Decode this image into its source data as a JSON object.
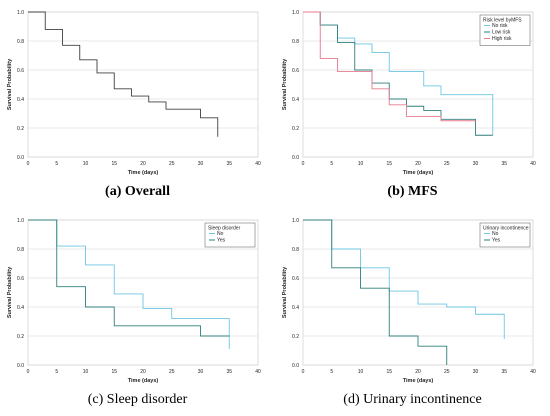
{
  "chart_data": [
    {
      "type": "line",
      "caption_letter": "(a)",
      "caption_text": "Overall",
      "caption_bold": true,
      "xlabel": "Time (days)",
      "ylabel": "Survival Probability",
      "xlim": [
        0,
        40
      ],
      "ylim": [
        0,
        1
      ],
      "xticks": [
        0,
        5,
        10,
        15,
        20,
        25,
        30,
        35,
        40
      ],
      "yticks": [
        0.0,
        0.2,
        0.4,
        0.6,
        0.8,
        1.0
      ],
      "grid": true,
      "legend_title": "",
      "series": [
        {
          "name": "",
          "color": "#404040",
          "points": [
            [
              0,
              1.0
            ],
            [
              3,
              1.0
            ],
            [
              3,
              0.88
            ],
            [
              6,
              0.88
            ],
            [
              6,
              0.77
            ],
            [
              9,
              0.77
            ],
            [
              9,
              0.67
            ],
            [
              12,
              0.67
            ],
            [
              12,
              0.58
            ],
            [
              15,
              0.58
            ],
            [
              15,
              0.47
            ],
            [
              18,
              0.47
            ],
            [
              18,
              0.42
            ],
            [
              21,
              0.42
            ],
            [
              21,
              0.38
            ],
            [
              24,
              0.38
            ],
            [
              24,
              0.33
            ],
            [
              30,
              0.33
            ],
            [
              30,
              0.27
            ],
            [
              33,
              0.27
            ],
            [
              33,
              0.14
            ]
          ]
        }
      ]
    },
    {
      "type": "line",
      "caption_letter": "(b)",
      "caption_text": "MFS",
      "caption_bold": true,
      "xlabel": "Time (days)",
      "ylabel": "Survival Probability",
      "xlim": [
        0,
        40
      ],
      "ylim": [
        0,
        1
      ],
      "xticks": [
        0,
        5,
        10,
        15,
        20,
        25,
        30,
        35,
        40
      ],
      "yticks": [
        0.0,
        0.2,
        0.4,
        0.6,
        0.8,
        1.0
      ],
      "grid": true,
      "legend_title": "Risk level byMFS",
      "legend_position": "top-right",
      "series": [
        {
          "name": "No risk",
          "color": "#6cc6e3",
          "points": [
            [
              0,
              1.0
            ],
            [
              3,
              1.0
            ],
            [
              3,
              0.91
            ],
            [
              6,
              0.91
            ],
            [
              6,
              0.82
            ],
            [
              9,
              0.82
            ],
            [
              9,
              0.78
            ],
            [
              12,
              0.78
            ],
            [
              12,
              0.72
            ],
            [
              15,
              0.72
            ],
            [
              15,
              0.59
            ],
            [
              21,
              0.59
            ],
            [
              21,
              0.49
            ],
            [
              24,
              0.49
            ],
            [
              24,
              0.43
            ],
            [
              33,
              0.43
            ],
            [
              33,
              0.15
            ]
          ]
        },
        {
          "name": "Low risk",
          "color": "#2e7f7b",
          "points": [
            [
              0,
              1.0
            ],
            [
              3,
              1.0
            ],
            [
              3,
              0.91
            ],
            [
              6,
              0.91
            ],
            [
              6,
              0.79
            ],
            [
              9,
              0.79
            ],
            [
              9,
              0.6
            ],
            [
              12,
              0.6
            ],
            [
              12,
              0.51
            ],
            [
              15,
              0.51
            ],
            [
              15,
              0.4
            ],
            [
              18,
              0.4
            ],
            [
              18,
              0.35
            ],
            [
              21,
              0.35
            ],
            [
              21,
              0.32
            ],
            [
              24,
              0.32
            ],
            [
              24,
              0.26
            ],
            [
              30,
              0.26
            ],
            [
              30,
              0.15
            ],
            [
              33,
              0.15
            ]
          ]
        },
        {
          "name": "High risk",
          "color": "#e57b8f",
          "points": [
            [
              0,
              1.0
            ],
            [
              3,
              1.0
            ],
            [
              3,
              0.68
            ],
            [
              6,
              0.68
            ],
            [
              6,
              0.59
            ],
            [
              12,
              0.59
            ],
            [
              12,
              0.47
            ],
            [
              15,
              0.47
            ],
            [
              15,
              0.36
            ],
            [
              18,
              0.36
            ],
            [
              18,
              0.28
            ],
            [
              24,
              0.28
            ],
            [
              24,
              0.25
            ],
            [
              30,
              0.25
            ]
          ]
        }
      ]
    },
    {
      "type": "line",
      "caption_letter": "(c)",
      "caption_text": "Sleep disorder",
      "caption_bold": false,
      "xlabel": "Time (days)",
      "ylabel": "Survival Probability",
      "xlim": [
        0,
        40
      ],
      "ylim": [
        0,
        1
      ],
      "xticks": [
        0,
        5,
        10,
        15,
        20,
        25,
        30,
        35,
        40
      ],
      "yticks": [
        0.0,
        0.2,
        0.4,
        0.6,
        0.8,
        1.0
      ],
      "grid": true,
      "legend_title": "Sleep disorder",
      "legend_position": "top-right",
      "series": [
        {
          "name": "No",
          "color": "#6cc6e3",
          "points": [
            [
              0,
              1.0
            ],
            [
              5,
              1.0
            ],
            [
              5,
              0.82
            ],
            [
              10,
              0.82
            ],
            [
              10,
              0.69
            ],
            [
              15,
              0.69
            ],
            [
              15,
              0.49
            ],
            [
              20,
              0.49
            ],
            [
              20,
              0.39
            ],
            [
              25,
              0.39
            ],
            [
              25,
              0.32
            ],
            [
              35,
              0.32
            ],
            [
              35,
              0.11
            ]
          ]
        },
        {
          "name": "Yes",
          "color": "#2e7f7b",
          "points": [
            [
              0,
              1.0
            ],
            [
              5,
              1.0
            ],
            [
              5,
              0.54
            ],
            [
              10,
              0.54
            ],
            [
              10,
              0.4
            ],
            [
              15,
              0.4
            ],
            [
              15,
              0.27
            ],
            [
              30,
              0.27
            ],
            [
              30,
              0.2
            ],
            [
              35,
              0.2
            ]
          ]
        }
      ]
    },
    {
      "type": "line",
      "caption_letter": "(d)",
      "caption_text": "Urinary incontinence",
      "caption_bold": false,
      "xlabel": "Time (days)",
      "ylabel": "Survival Probability",
      "xlim": [
        0,
        40
      ],
      "ylim": [
        0,
        1
      ],
      "xticks": [
        0,
        5,
        10,
        15,
        20,
        25,
        30,
        35,
        40
      ],
      "yticks": [
        0.0,
        0.2,
        0.4,
        0.6,
        0.8,
        1.0
      ],
      "grid": true,
      "legend_title": "Urinary incontinence",
      "legend_position": "top-right",
      "series": [
        {
          "name": "No",
          "color": "#6cc6e3",
          "points": [
            [
              0,
              1.0
            ],
            [
              5,
              1.0
            ],
            [
              5,
              0.8
            ],
            [
              10,
              0.8
            ],
            [
              10,
              0.67
            ],
            [
              15,
              0.67
            ],
            [
              15,
              0.51
            ],
            [
              20,
              0.51
            ],
            [
              20,
              0.42
            ],
            [
              25,
              0.42
            ],
            [
              25,
              0.4
            ],
            [
              30,
              0.4
            ],
            [
              30,
              0.35
            ],
            [
              35,
              0.35
            ],
            [
              35,
              0.18
            ]
          ]
        },
        {
          "name": "Yes",
          "color": "#2e7f7b",
          "points": [
            [
              0,
              1.0
            ],
            [
              5,
              1.0
            ],
            [
              5,
              0.67
            ],
            [
              10,
              0.67
            ],
            [
              10,
              0.53
            ],
            [
              15,
              0.53
            ],
            [
              15,
              0.2
            ],
            [
              20,
              0.2
            ],
            [
              20,
              0.13
            ],
            [
              25,
              0.13
            ],
            [
              25,
              0.0
            ]
          ]
        }
      ]
    }
  ]
}
